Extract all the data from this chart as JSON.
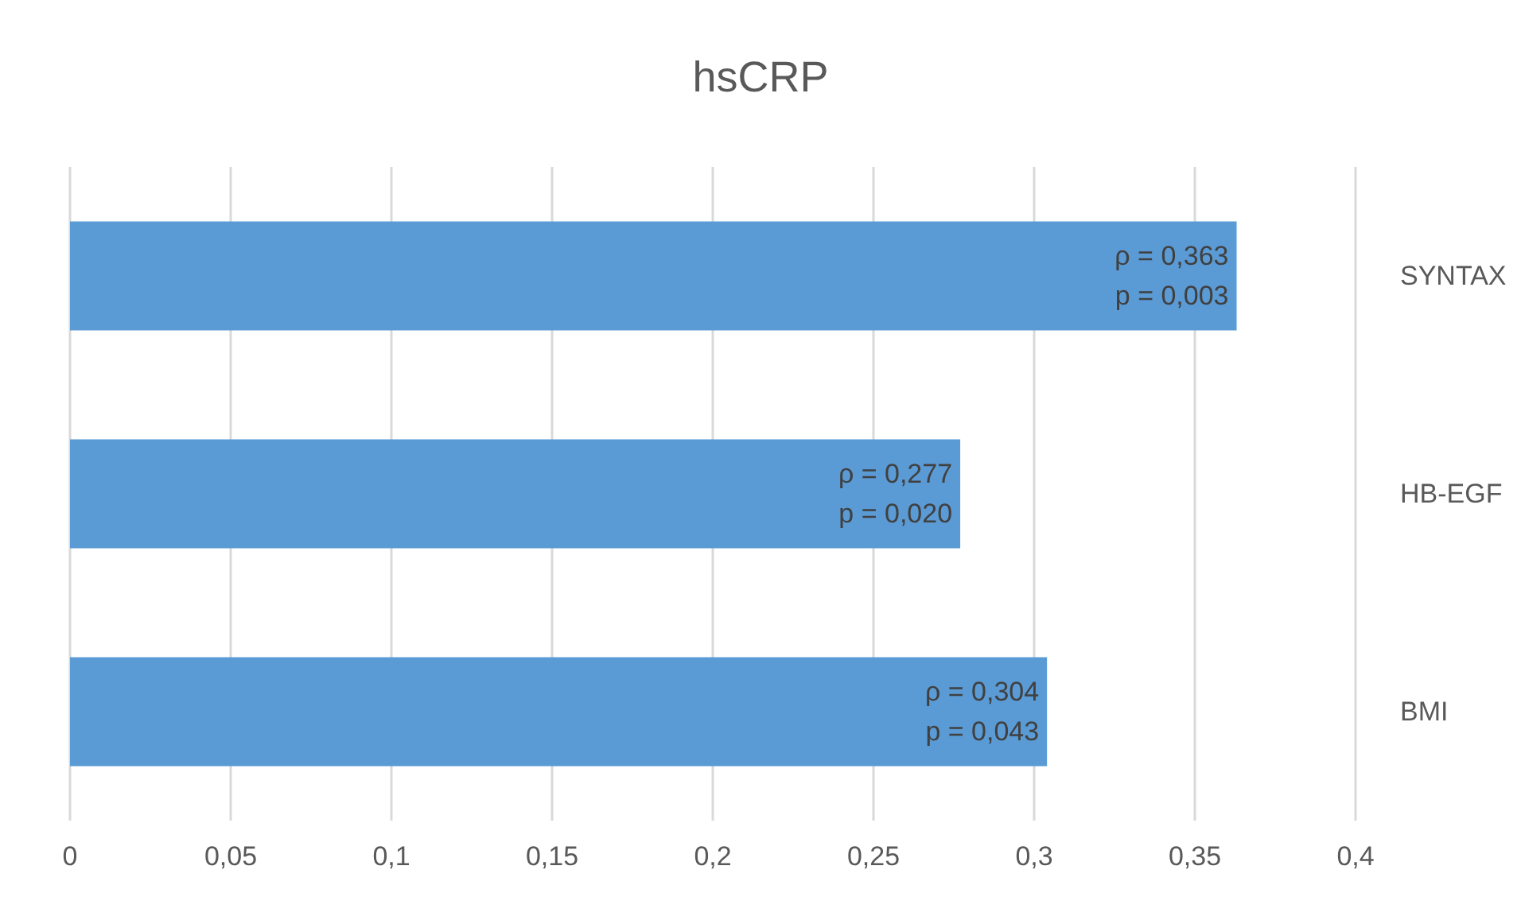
{
  "chart_data": {
    "type": "bar",
    "orientation": "horizontal",
    "title": "hsCRP",
    "categories": [
      "SYNTAX",
      "HB-EGF",
      "BMI"
    ],
    "values": [
      0.363,
      0.277,
      0.304
    ],
    "value_labels": [
      "ρ = 0,363\np = 0,003",
      "ρ = 0,277\np = 0,020",
      "ρ = 0,304\np = 0,043"
    ],
    "color": "#5b9bd5",
    "xlim": [
      0,
      0.4
    ],
    "xticks": [
      0,
      {
        "value": 0.05,
        "label": "0,05"
      },
      {
        "value": 0.1,
        "label": "0,1"
      },
      {
        "value": 0.15,
        "label": "0,15"
      },
      {
        "value": 0.2,
        "label": "0,2"
      },
      {
        "value": 0.25,
        "label": "0,25"
      },
      {
        "value": 0.3,
        "label": "0,3"
      },
      {
        "value": 0.35,
        "label": "0,35"
      },
      {
        "value": 0.4,
        "label": "0,4"
      }
    ],
    "grid": "x"
  }
}
